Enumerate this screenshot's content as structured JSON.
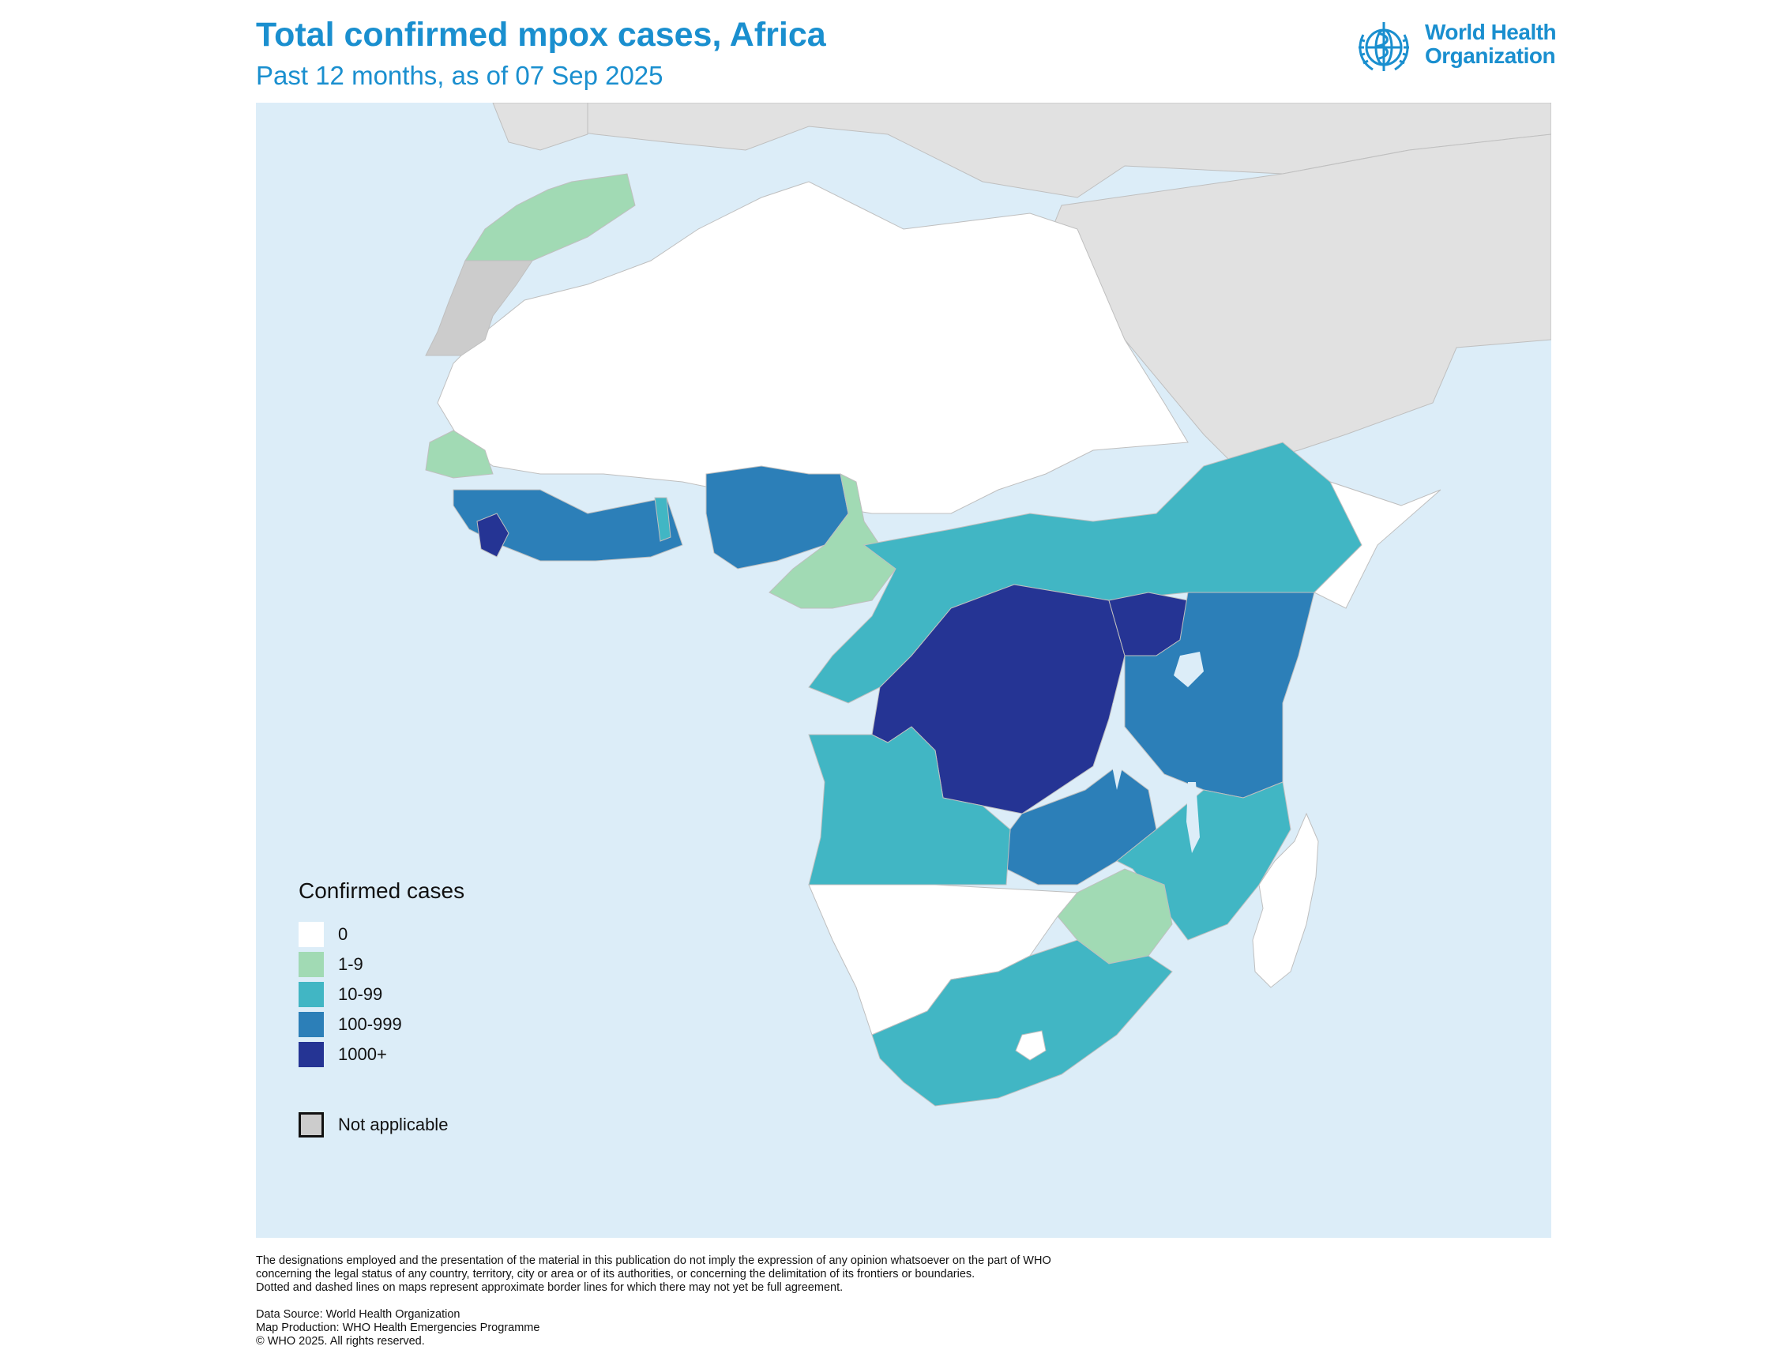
{
  "header": {
    "title": "Total confirmed mpox cases, Africa",
    "subtitle": "Past 12 months, as of 07 Sep 2025"
  },
  "logo": {
    "line1": "World Health",
    "line2": "Organization",
    "emblem": "who-emblem-icon"
  },
  "legend": {
    "title": "Confirmed cases",
    "items": [
      {
        "label": "0",
        "color": "#ffffff"
      },
      {
        "label": "1-9",
        "color": "#a1dab4"
      },
      {
        "label": "10-99",
        "color": "#41b6c4"
      },
      {
        "label": "100-999",
        "color": "#2c7fb8"
      },
      {
        "label": "1000+",
        "color": "#253494"
      }
    ],
    "not_applicable": {
      "label": "Not applicable",
      "color": "#cccccc"
    }
  },
  "colors": {
    "ocean": "#dcedf8",
    "other_land": "#e1e1e1",
    "border": "#bfbfbf"
  },
  "footer": {
    "disclaimer": [
      "The designations employed and the presentation of the material in this publication do not imply the expression of any opinion whatsoever on the part of WHO",
      "concerning the legal status of any country, territory, city or area or of its authorities, or concerning the delimitation of its frontiers or boundaries.",
      "Dotted and dashed lines on maps represent approximate border lines for which there may not yet be full agreement."
    ],
    "credits": [
      "Data Source: World Health Organization",
      "Map Production: WHO Health Emergencies Programme",
      "© WHO 2025. All rights reserved."
    ]
  }
}
